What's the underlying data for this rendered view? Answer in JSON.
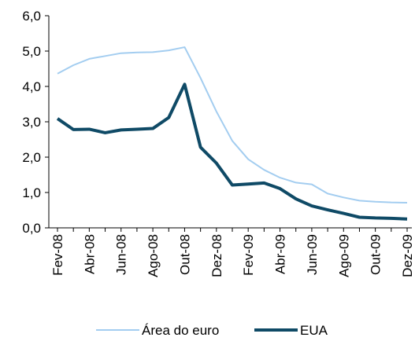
{
  "chart_data": {
    "type": "line",
    "categories": [
      "Fev-08",
      null,
      "Abr-08",
      null,
      "Jun-08",
      null,
      "Ago-08",
      null,
      "Out-08",
      null,
      "Dez-08",
      null,
      "Fev-09",
      null,
      "Abr-09",
      null,
      "Jun-09",
      null,
      "Ago-09",
      null,
      "Out-09",
      null,
      "Dez-09"
    ],
    "series": [
      {
        "name": "Área do euro",
        "color": "#a3cdf0",
        "width": 2,
        "values": [
          4.36,
          4.6,
          4.78,
          4.86,
          4.94,
          4.96,
          4.97,
          5.02,
          5.11,
          4.24,
          3.29,
          2.46,
          1.94,
          1.64,
          1.42,
          1.28,
          1.23,
          0.97,
          0.86,
          0.77,
          0.74,
          0.72,
          0.71
        ]
      },
      {
        "name": "EUA",
        "color": "#0f4a66",
        "width": 4,
        "values": [
          3.09,
          2.78,
          2.79,
          2.69,
          2.77,
          2.79,
          2.81,
          3.12,
          4.06,
          2.28,
          1.83,
          1.21,
          1.24,
          1.27,
          1.11,
          0.82,
          0.62,
          0.51,
          0.41,
          0.3,
          0.28,
          0.27,
          0.25
        ]
      }
    ],
    "ylim": [
      0,
      6
    ],
    "yticks": [
      {
        "value": 0,
        "label": "0,0"
      },
      {
        "value": 1,
        "label": "1,0"
      },
      {
        "value": 2,
        "label": "2,0"
      },
      {
        "value": 3,
        "label": "3,0"
      },
      {
        "value": 4,
        "label": "4,0"
      },
      {
        "value": 5,
        "label": "5,0"
      },
      {
        "value": 6,
        "label": "6,0"
      }
    ],
    "legend": "bottom"
  }
}
